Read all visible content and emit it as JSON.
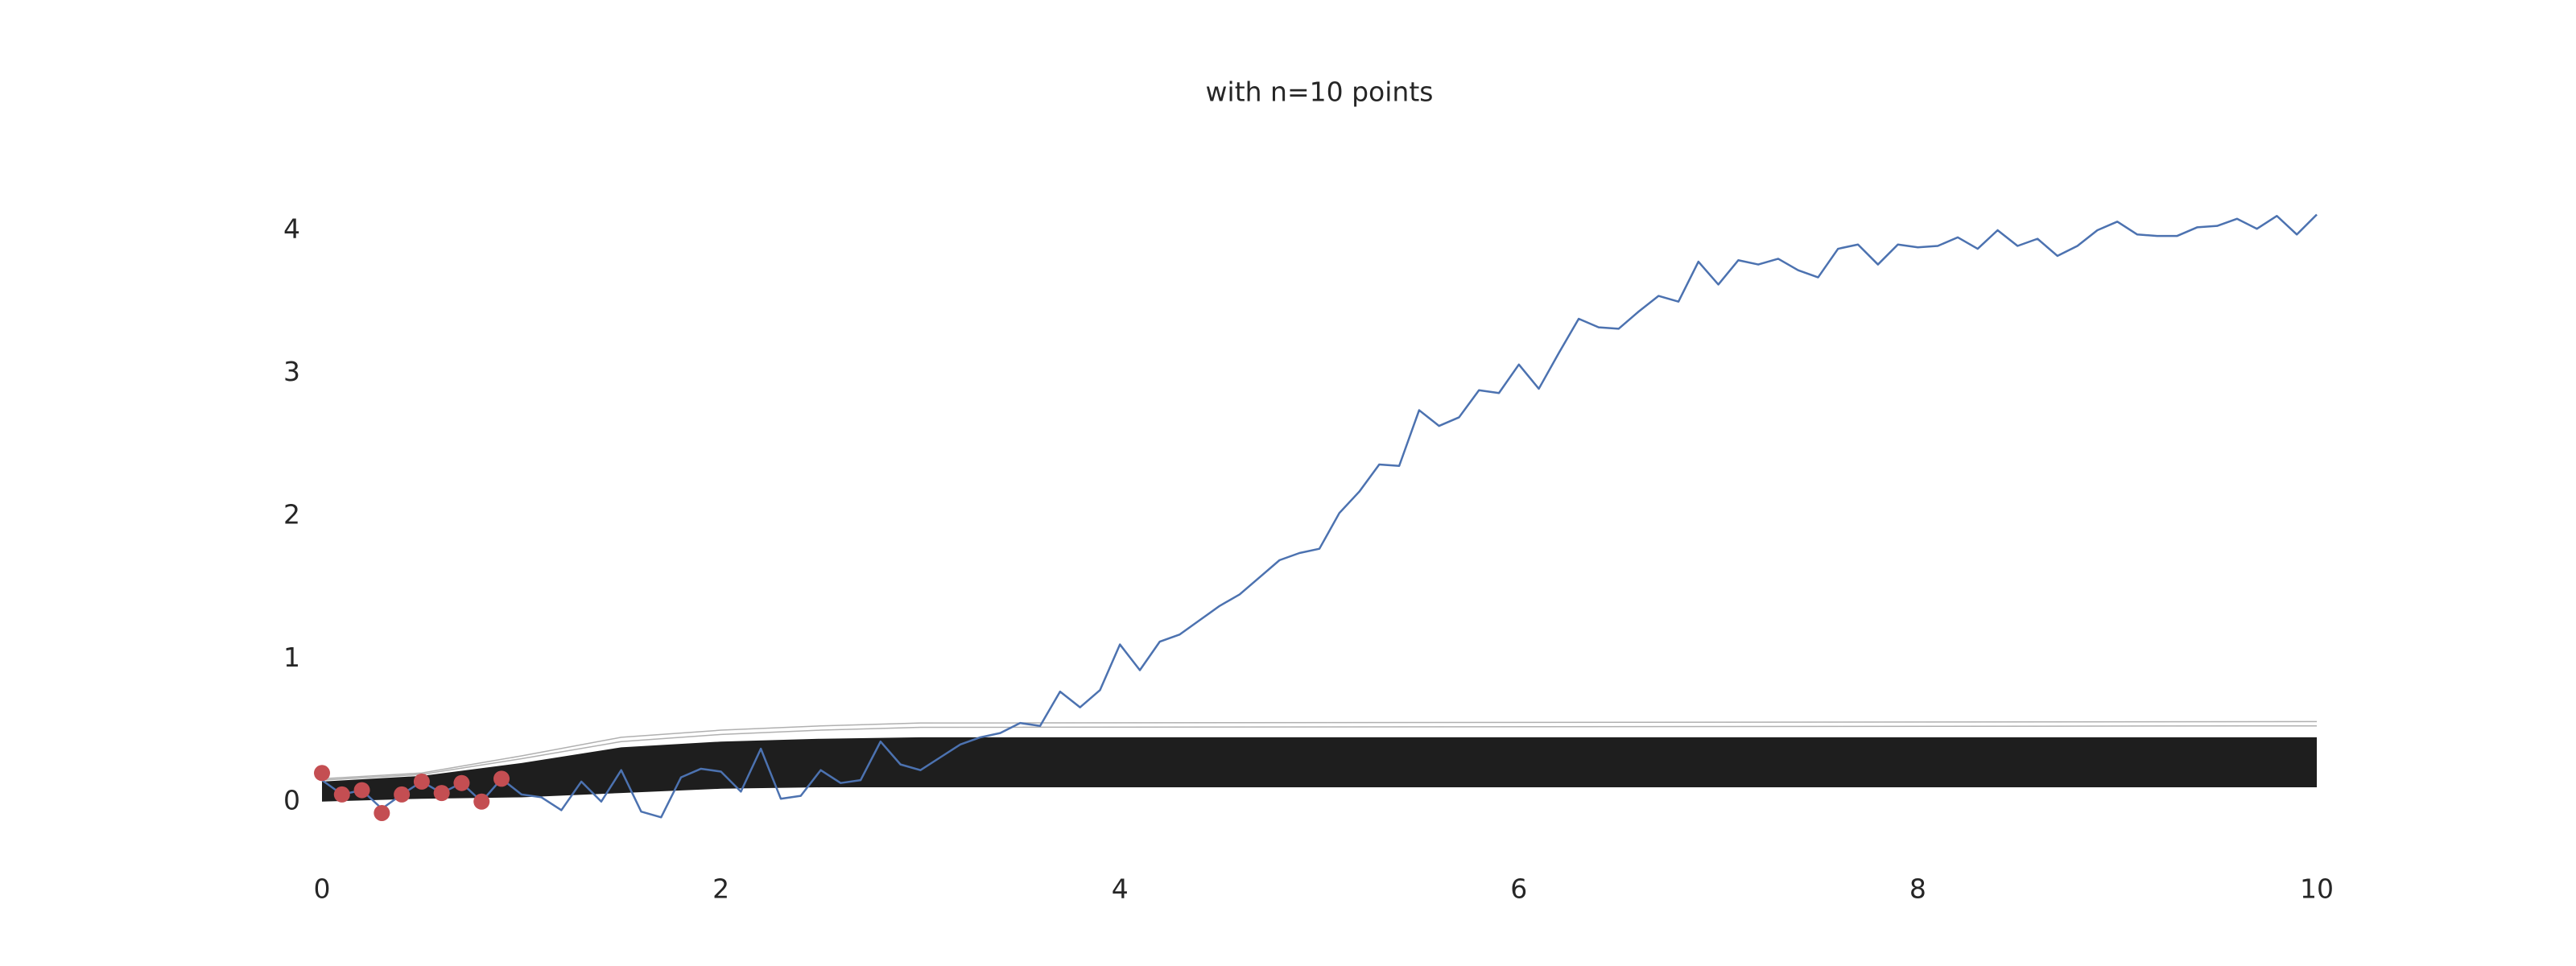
{
  "chart_data": {
    "type": "line",
    "title": "with n=10 points",
    "xlim": [
      0,
      10
    ],
    "xticks": [
      0,
      2,
      4,
      6,
      8,
      10
    ],
    "ylim": [
      -0.3,
      4.4
    ],
    "yticks": [
      0,
      1,
      2,
      3,
      4
    ],
    "grid": false,
    "band": {
      "color": "#1e1e1e",
      "x": [
        0,
        0.5,
        1,
        1.5,
        2,
        2.5,
        3,
        10
      ],
      "lower": [
        0.0,
        0.02,
        0.03,
        0.06,
        0.09,
        0.1,
        0.1,
        0.1
      ],
      "upper": [
        0.14,
        0.18,
        0.27,
        0.38,
        0.42,
        0.44,
        0.45,
        0.45
      ]
    },
    "samples": {
      "color": "#b0b0b0",
      "x": [
        0,
        0.5,
        1,
        1.5,
        2,
        2.5,
        3,
        10
      ],
      "lines": [
        [
          0.16,
          0.2,
          0.32,
          0.45,
          0.5,
          0.53,
          0.55,
          0.56
        ],
        [
          0.15,
          0.19,
          0.3,
          0.42,
          0.47,
          0.5,
          0.52,
          0.53
        ]
      ]
    },
    "series": [
      {
        "color": "#4c72b0",
        "x": [
          0,
          0.1,
          0.2,
          0.3,
          0.4,
          0.5,
          0.6,
          0.7,
          0.8,
          0.9,
          1,
          1.1,
          1.2,
          1.3,
          1.4,
          1.5,
          1.6,
          1.7,
          1.8,
          1.9,
          2,
          2.1,
          2.2,
          2.3,
          2.4,
          2.5,
          2.6,
          2.7,
          2.8,
          2.9,
          3,
          3.1,
          3.2,
          3.3,
          3.4,
          3.5,
          3.6,
          3.7,
          3.8,
          3.9,
          4,
          4.1,
          4.2,
          4.3,
          4.4,
          4.5,
          4.6,
          4.7,
          4.8,
          4.9,
          5,
          5.1,
          5.2,
          5.3,
          5.4,
          5.5,
          5.6,
          5.7,
          5.8,
          5.9,
          6,
          6.1,
          6.2,
          6.3,
          6.4,
          6.5,
          6.6,
          6.7,
          6.8,
          6.9,
          7,
          7.1,
          7.2,
          7.3,
          7.4,
          7.5,
          7.6,
          7.7,
          7.8,
          7.9,
          8,
          8.1,
          8.2,
          8.3,
          8.4,
          8.5,
          8.6,
          8.7,
          8.8,
          8.9,
          9,
          9.1,
          9.2,
          9.3,
          9.4,
          9.5,
          9.6,
          9.7,
          9.8,
          9.9,
          10
        ],
        "values": [
          0.15,
          0.05,
          0.08,
          -0.05,
          0.05,
          0.14,
          0.06,
          0.13,
          0.0,
          0.16,
          0.05,
          0.03,
          -0.06,
          0.14,
          0.0,
          0.22,
          -0.07,
          -0.11,
          0.17,
          0.23,
          0.21,
          0.07,
          0.37,
          0.02,
          0.04,
          0.22,
          0.13,
          0.15,
          0.42,
          0.26,
          0.22,
          0.31,
          0.4,
          0.45,
          0.48,
          0.55,
          0.53,
          0.77,
          0.66,
          0.78,
          1.1,
          0.92,
          1.12,
          1.17,
          1.27,
          1.37,
          1.45,
          1.57,
          1.69,
          1.74,
          1.77,
          2.02,
          2.17,
          2.36,
          2.35,
          2.74,
          2.63,
          2.69,
          2.88,
          2.86,
          3.06,
          2.89,
          3.14,
          3.38,
          3.32,
          3.31,
          3.43,
          3.54,
          3.5,
          3.78,
          3.62,
          3.79,
          3.76,
          3.8,
          3.72,
          3.67,
          3.87,
          3.9,
          3.76,
          3.9,
          3.88,
          3.89,
          3.95,
          3.87,
          4.0,
          3.89,
          3.94,
          3.82,
          3.89,
          4.0,
          4.06,
          3.97,
          3.96,
          3.96,
          4.02,
          4.03,
          4.08,
          4.01,
          4.1,
          3.97,
          4.11
        ]
      },
      {
        "type": "scatter",
        "color": "#c44e52",
        "x": [
          0,
          0.1,
          0.2,
          0.3,
          0.4,
          0.5,
          0.6,
          0.7,
          0.8,
          0.9
        ],
        "values": [
          0.2,
          0.05,
          0.08,
          -0.08,
          0.05,
          0.14,
          0.06,
          0.13,
          0.0,
          0.16
        ]
      }
    ]
  }
}
